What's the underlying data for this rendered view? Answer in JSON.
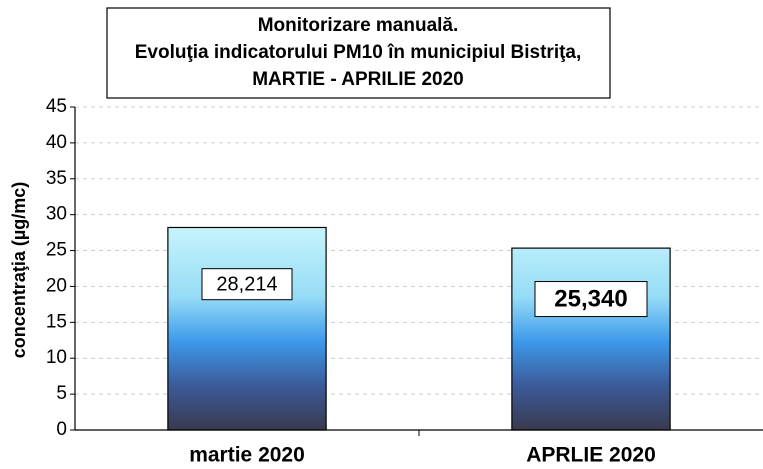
{
  "chart_data": {
    "type": "bar",
    "title": [
      "Monitorizare manuală.",
      "Evoluţia indicatorului PM10 în municipiul Bistriţa,",
      "MARTIE - APRILIE 2020"
    ],
    "y_label": "concentraţia (µg/mc)",
    "categories": [
      "martie 2020",
      "APRLIE 2020"
    ],
    "values": [
      28.214,
      25.34
    ],
    "value_labels": [
      "28,214",
      "25,340"
    ],
    "ylim": [
      0,
      45
    ],
    "yticks": [
      0,
      5,
      10,
      15,
      20,
      25,
      30,
      35,
      40,
      45
    ],
    "grid": true
  }
}
